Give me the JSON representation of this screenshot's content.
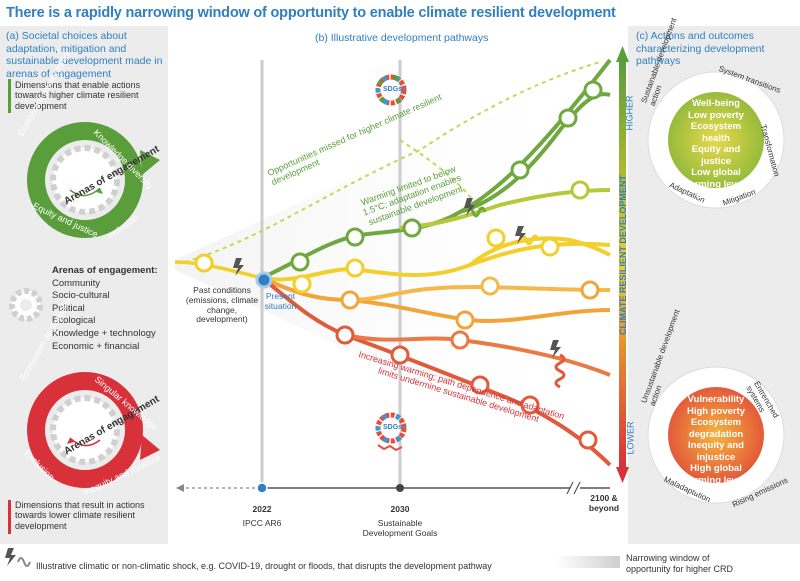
{
  "title": "There is a rapidly narrowing window of opportunity to enable climate resilient development",
  "panel_a": {
    "title": "(a) Societal choices about adaptation, mitigation and sustainable development made in arenas of engagement",
    "enable_text": "Dimensions that enable actions towards higher climate resilient development",
    "green_wheel": {
      "center": "Arenas of engagement",
      "segments": [
        "Ecosystem stewardship",
        "Knowledge diversity",
        "Inclusion",
        "Equity and justice"
      ]
    },
    "arenas_list": {
      "heading": "Arenas of engagement:",
      "items": [
        "Community",
        "Socio-cultural",
        "Political",
        "Ecological",
        "Knowledge + technology",
        "Economic + financial"
      ]
    },
    "red_wheel": {
      "center": "Arenas of engagement",
      "segments": [
        "Ecosystem degradation",
        "Singular knowledge",
        "Inequity and injustice",
        "Exclusion"
      ]
    },
    "lower_text": "Dimensions that result in actions towards lower climate resilient development"
  },
  "panel_b": {
    "title": "(b) Illustrative development pathways",
    "sdgs_label": "SDGs",
    "annotations": {
      "missed": "Opportunities missed for higher climate resilient development",
      "warming_limited": "Warming limited to below 1.5°C; adaptation enables sustainable development",
      "increasing": "Increasing warming; path dependence and adaptation limits undermine sustainable development",
      "past": "Past conditions (emissions, climate change, development)",
      "present": "Present situation"
    },
    "timeline": {
      "ticks": [
        {
          "year": "2022",
          "sub": "IPCC AR6"
        },
        {
          "year": "2030",
          "sub": "Sustainable Development Goals"
        },
        {
          "year": "2100 & beyond",
          "sub": ""
        }
      ]
    },
    "axis_label": "CLIMATE RESILIENT DEVELOPMENT",
    "higher": "HIGHER",
    "lower": "LOWER"
  },
  "panel_c": {
    "title": "(c) Actions and outcomes characterizing development pathways",
    "top_ring": [
      "Sustainable development action",
      "System transitions",
      "Transformation",
      "Mitigation",
      "Adaptation"
    ],
    "top_outcomes": [
      "Well-being",
      "Low poverty",
      "Ecosystem health",
      "Equity and justice",
      "Low global",
      "warming levels",
      "Low risk"
    ],
    "bottom_ring": [
      "Unsustainable development action",
      "Entrenched systems",
      "Rising emissions",
      "Maladaptation"
    ],
    "bottom_outcomes": [
      "Vulnerability",
      "High poverty",
      "Ecosystem degradation",
      "Inequity and injustice",
      "High global",
      "warming levels",
      "High risk"
    ]
  },
  "footer": {
    "shock_text": "Illustrative climatic or non-climatic shock, e.g. COVID-19, drought or floods, that disrupts the development pathway",
    "window_text": "Narrowing window of opportunity for higher CRD"
  },
  "colors": {
    "green": "#5a9e3b",
    "yellow": "#f2cf2a",
    "orange": "#f2a33a",
    "red": "#d9313a",
    "blue": "#2f7fc2"
  }
}
